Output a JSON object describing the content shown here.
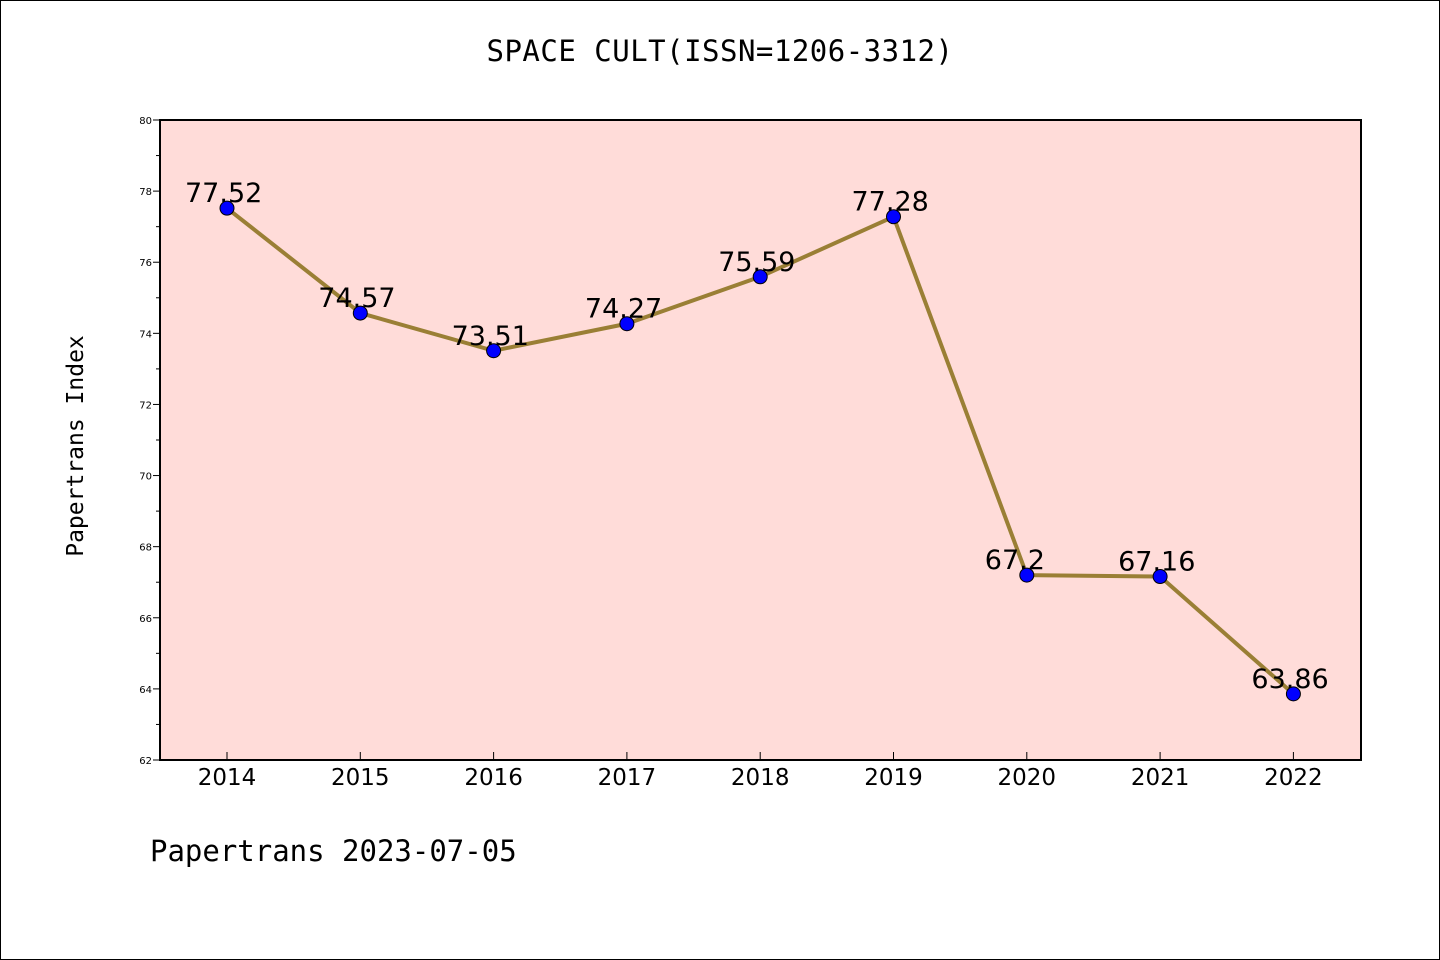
{
  "chart_data": {
    "type": "line",
    "title": "SPACE CULT(ISSN=1206-3312)",
    "xlabel": "",
    "ylabel": "Papertrans Index",
    "x": [
      "2014",
      "2015",
      "2016",
      "2017",
      "2018",
      "2019",
      "2020",
      "2021",
      "2022"
    ],
    "values": [
      77.52,
      74.57,
      73.51,
      74.27,
      75.59,
      77.28,
      67.2,
      67.16,
      63.86
    ],
    "data_labels": [
      "77.52",
      "74.57",
      "73.51",
      "74.27",
      "75.59",
      "77.28",
      "67.2",
      "67.16",
      "63.86"
    ],
    "ylim": [
      62,
      80
    ],
    "yticks": [
      "62",
      "64",
      "66",
      "68",
      "70",
      "72",
      "74",
      "76",
      "78",
      "80"
    ],
    "grid": false,
    "legend": "none",
    "colors": {
      "plot_background": "#ffdcd9",
      "line": "#9a7f35",
      "marker": "#0000ff"
    }
  },
  "footer": "Papertrans 2023-07-05"
}
